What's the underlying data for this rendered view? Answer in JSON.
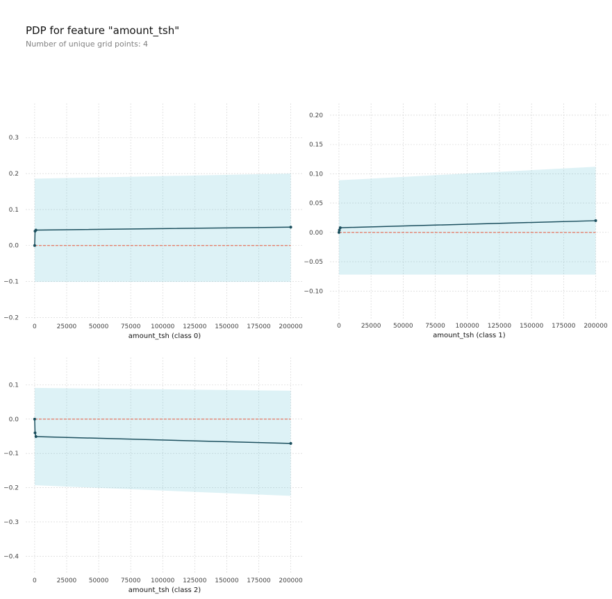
{
  "title": "PDP for feature \"amount_tsh\"",
  "subtitle": "Number of unique grid points: 4",
  "colors": {
    "line": "#1a4e5d",
    "band": "#66c2d7",
    "zero_line": "#e75438",
    "grid": "#cfcfcf",
    "tick_text": "#424242"
  },
  "chart_data": [
    {
      "type": "line",
      "xlabel": "amount_tsh (class 0)",
      "x": [
        0,
        300,
        1000,
        200000
      ],
      "y": [
        0.0,
        0.04,
        0.043,
        0.051
      ],
      "band_lower": [
        -0.101,
        -0.101,
        -0.101,
        -0.101
      ],
      "band_upper": [
        0.186,
        0.186,
        0.186,
        0.2
      ],
      "xlim": [
        -7000,
        210000
      ],
      "ylim": [
        -0.205,
        0.395
      ],
      "xticks": [
        0,
        25000,
        50000,
        75000,
        100000,
        125000,
        150000,
        175000,
        200000
      ],
      "yticks": [
        -0.2,
        -0.1,
        0.0,
        0.1,
        0.2,
        0.3
      ],
      "ytick_labels": [
        "−0.2",
        "−0.1",
        "0.0",
        "0.1",
        "0.2",
        "0.3"
      ],
      "grid": true
    },
    {
      "type": "line",
      "xlabel": "amount_tsh (class 1)",
      "x": [
        0,
        300,
        1000,
        200000
      ],
      "y": [
        0.0,
        0.004,
        0.008,
        0.02
      ],
      "band_lower": [
        -0.072,
        -0.072,
        -0.072,
        -0.072
      ],
      "band_upper": [
        0.089,
        0.089,
        0.089,
        0.112
      ],
      "xlim": [
        -7000,
        210000
      ],
      "ylim": [
        -0.147,
        0.22
      ],
      "xticks": [
        0,
        25000,
        50000,
        75000,
        100000,
        125000,
        150000,
        175000,
        200000
      ],
      "yticks": [
        -0.1,
        -0.05,
        0.0,
        0.05,
        0.1,
        0.15,
        0.2
      ],
      "ytick_labels": [
        "−0.10",
        "−0.05",
        "0.00",
        "0.05",
        "0.10",
        "0.15",
        "0.20"
      ],
      "grid": true
    },
    {
      "type": "line",
      "xlabel": "amount_tsh (class 2)",
      "x": [
        0,
        300,
        1000,
        200000
      ],
      "y": [
        0.0,
        -0.04,
        -0.051,
        -0.071
      ],
      "band_lower": [
        -0.193,
        -0.193,
        -0.193,
        -0.224
      ],
      "band_upper": [
        0.091,
        0.091,
        0.091,
        0.083
      ],
      "xlim": [
        -7000,
        210000
      ],
      "ylim": [
        -0.45,
        0.18
      ],
      "xticks": [
        0,
        25000,
        50000,
        75000,
        100000,
        125000,
        150000,
        175000,
        200000
      ],
      "yticks": [
        -0.4,
        -0.3,
        -0.2,
        -0.1,
        0.0,
        0.1
      ],
      "ytick_labels": [
        "−0.4",
        "−0.3",
        "−0.2",
        "−0.1",
        "0.0",
        "0.1"
      ],
      "grid": true
    }
  ]
}
